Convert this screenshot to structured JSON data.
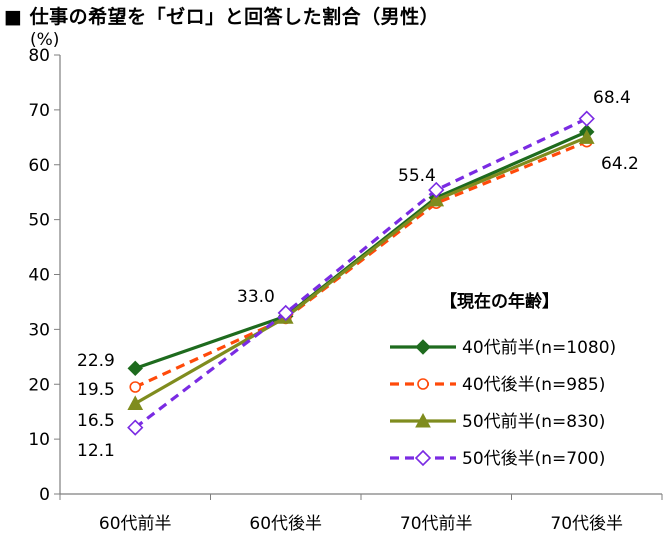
{
  "title": "■ 仕事の希望を「ゼロ」と回答した割合（男性）",
  "chart_data": {
    "type": "line",
    "title": "■ 仕事の希望を「ゼロ」と回答した割合（男性）",
    "ylabel": "(%)",
    "xlabel": "",
    "ylim": [
      0,
      80
    ],
    "yticks": [
      0,
      10,
      20,
      30,
      40,
      50,
      60,
      70,
      80
    ],
    "categories": [
      "60代前半",
      "60代後半",
      "70代前半",
      "70代後半"
    ],
    "grid": false,
    "legend_title": "【現在の年齢】",
    "legend_position": "right",
    "series": [
      {
        "name": "40代前半(n=1080)",
        "values": [
          22.9,
          32.4,
          54.0,
          66.0
        ],
        "color": "#1e6b1e",
        "dash": "solid",
        "marker": "diamond-filled"
      },
      {
        "name": "40代後半(n=985)",
        "values": [
          19.5,
          32.0,
          53.0,
          64.2
        ],
        "color": "#ff4a0a",
        "dash": "dashed",
        "marker": "circle-open"
      },
      {
        "name": "50代前半(n=830)",
        "values": [
          16.5,
          32.2,
          53.6,
          65.0
        ],
        "color": "#7f8c1e",
        "dash": "solid",
        "marker": "triangle-filled"
      },
      {
        "name": "50代後半(n=700)",
        "values": [
          12.1,
          33.0,
          55.4,
          68.4
        ],
        "color": "#7a2be3",
        "dash": "dashed",
        "marker": "diamond-open"
      }
    ],
    "data_labels": [
      {
        "text": "22.9"
      },
      {
        "text": "19.5"
      },
      {
        "text": "16.5"
      },
      {
        "text": "12.1"
      },
      {
        "text": "33.0"
      },
      {
        "text": "55.4"
      },
      {
        "text": "68.4"
      },
      {
        "text": "64.2"
      }
    ]
  }
}
